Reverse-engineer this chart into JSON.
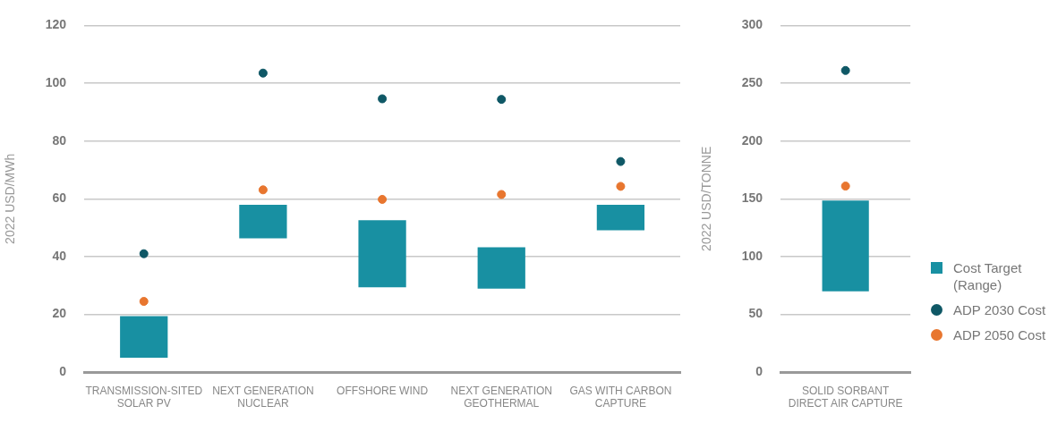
{
  "chart_data": [
    {
      "type": "bar",
      "categories": [
        "TRANSMISSION-SITED SOLAR PV",
        "NEXT GENERATION NUCLEAR",
        "OFFSHORE WIND",
        "NEXT GENERATION GEOTHERMAL",
        "GAS WITH CARBON CAPTURE"
      ],
      "ylabel": "2022 USD/MWh",
      "ylim": [
        0,
        120
      ],
      "yticks": [
        0,
        20,
        40,
        60,
        80,
        100,
        120
      ],
      "grid": "y",
      "legend": false,
      "series": [
        {
          "color": "#1890a2",
          "base": [
            5,
            46.3,
            29.4,
            28.9,
            49.1
          ],
          "values": [
            14.4,
            11.6,
            23.2,
            14.3,
            8.8
          ]
        },
        {
          "type": "scatter",
          "color": "#0f5866",
          "values": [
            41,
            103.5,
            94.6,
            94.4,
            72.9
          ]
        },
        {
          "type": "scatter",
          "color": "#e8762f",
          "values": [
            24.5,
            63.1,
            59.8,
            61.5,
            64.3
          ]
        }
      ]
    },
    {
      "type": "bar",
      "categories": [
        "SOLID SORBANT DIRECT AIR CAPTURE"
      ],
      "ylabel": "2022 USD/TONNE",
      "ylim": [
        0,
        300
      ],
      "yticks": [
        0,
        50,
        100,
        150,
        200,
        250,
        300
      ],
      "grid": "y",
      "legend": "right",
      "series": [
        {
          "name": "Cost Target (Range)",
          "color": "#1890a2",
          "base": [
            70
          ],
          "values": [
            78.5
          ]
        },
        {
          "type": "scatter",
          "name": "ADP 2030 Cost",
          "color": "#0f5866",
          "values": [
            261
          ]
        },
        {
          "type": "scatter",
          "name": "ADP 2050 Cost",
          "color": "#e8762f",
          "values": [
            161
          ]
        }
      ]
    }
  ]
}
